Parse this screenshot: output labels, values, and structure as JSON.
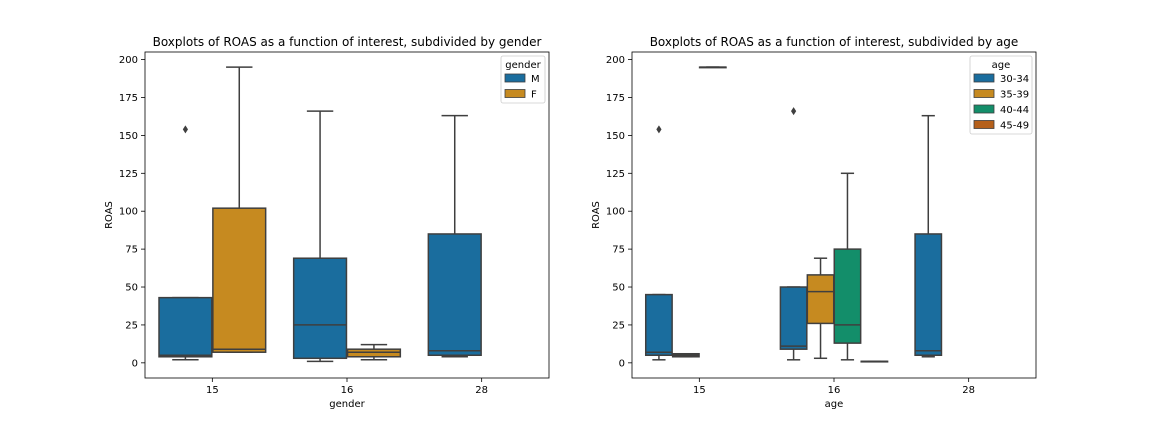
{
  "chart_data": [
    {
      "type": "box",
      "title": "Boxplots of ROAS as a function of interest, subdivided by gender",
      "xlabel": "gender",
      "ylabel": "ROAS",
      "ylim": [
        -10,
        205
      ],
      "yticks": [
        0,
        25,
        50,
        75,
        100,
        125,
        150,
        175,
        200
      ],
      "categories": [
        "15",
        "16",
        "28"
      ],
      "legend": {
        "title": "gender",
        "placement": "top-right"
      },
      "series": [
        {
          "name": "M",
          "color": "#1a6d9e",
          "boxes": [
            {
              "category": "15",
              "whislo": 2,
              "q1": 4,
              "median": 5,
              "q3": 43,
              "whishi": 43,
              "fliers": [
                154
              ]
            },
            {
              "category": "16",
              "whislo": 1,
              "q1": 3,
              "median": 25,
              "q3": 69,
              "whishi": 166,
              "fliers": []
            },
            {
              "category": "28",
              "whislo": 4,
              "q1": 5,
              "median": 8,
              "q3": 85,
              "whishi": 163,
              "fliers": []
            }
          ]
        },
        {
          "name": "F",
          "color": "#c68a20",
          "boxes": [
            {
              "category": "15",
              "whislo": 7,
              "q1": 7,
              "median": 9,
              "q3": 102,
              "whishi": 195,
              "fliers": []
            },
            {
              "category": "16",
              "whislo": 2,
              "q1": 4,
              "median": 7,
              "q3": 9,
              "whishi": 12,
              "fliers": []
            }
          ]
        }
      ]
    },
    {
      "type": "box",
      "title": "Boxplots of ROAS as a function of interest, subdivided by age",
      "xlabel": "age",
      "ylabel": "ROAS",
      "ylim": [
        -10,
        205
      ],
      "yticks": [
        0,
        25,
        50,
        75,
        100,
        125,
        150,
        175,
        200
      ],
      "categories": [
        "15",
        "16",
        "28"
      ],
      "legend": {
        "title": "age",
        "placement": "top-right"
      },
      "series": [
        {
          "name": "30-34",
          "color": "#1a6d9e",
          "boxes": [
            {
              "category": "15",
              "whislo": 2,
              "q1": 5,
              "median": 7,
              "q3": 45,
              "whishi": 45,
              "fliers": [
                154
              ]
            },
            {
              "category": "16",
              "whislo": 2,
              "q1": 9,
              "median": 11,
              "q3": 50,
              "whishi": 50,
              "fliers": [
                166
              ]
            },
            {
              "category": "28",
              "whislo": 4,
              "q1": 5,
              "median": 8,
              "q3": 85,
              "whishi": 163,
              "fliers": []
            }
          ]
        },
        {
          "name": "35-39",
          "color": "#c68a20",
          "boxes": [
            {
              "category": "15",
              "whislo": 4,
              "q1": 4,
              "median": 5,
              "q3": 6,
              "whishi": 6,
              "fliers": []
            },
            {
              "category": "16",
              "whislo": 3,
              "q1": 26,
              "median": 47,
              "q3": 58,
              "whishi": 69,
              "fliers": []
            }
          ]
        },
        {
          "name": "40-44",
          "color": "#138e6a",
          "boxes": [
            {
              "category": "15",
              "whislo": 195,
              "q1": 195,
              "median": 195,
              "q3": 195,
              "whishi": 195,
              "fliers": []
            },
            {
              "category": "16",
              "whislo": 2,
              "q1": 13,
              "median": 25,
              "q3": 75,
              "whishi": 125,
              "fliers": []
            }
          ]
        },
        {
          "name": "45-49",
          "color": "#b5601b",
          "boxes": [
            {
              "category": "16",
              "whislo": 1,
              "q1": 1,
              "median": 1,
              "q3": 1,
              "whishi": 1,
              "fliers": []
            }
          ]
        }
      ]
    }
  ]
}
